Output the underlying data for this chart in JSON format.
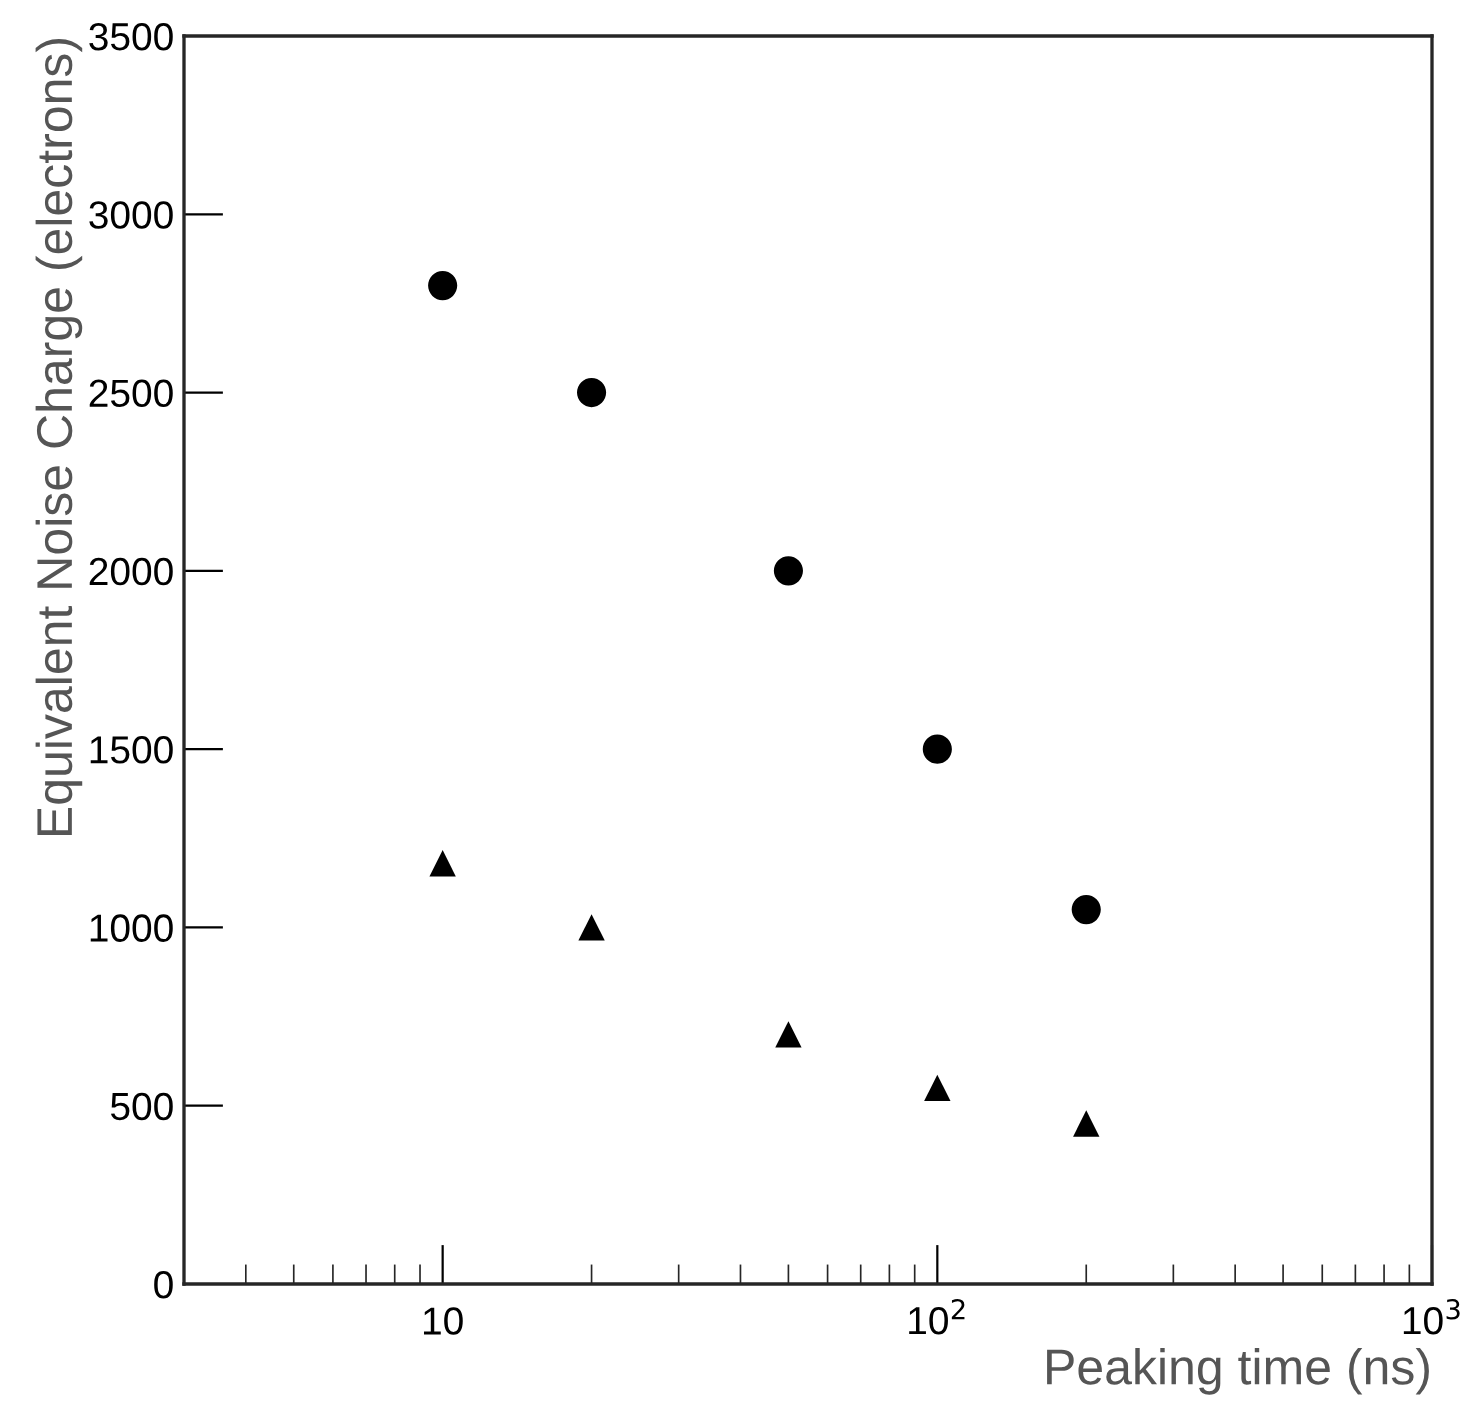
{
  "chart_data": {
    "type": "scatter",
    "xlabel": "Peaking time (ns)",
    "ylabel": "Equivalent Noise Charge (electrons)",
    "log": "x",
    "grid": false,
    "legend": false,
    "xlim": [
      3,
      1000
    ],
    "xticks": [
      {
        "value": 10,
        "label": "10"
      },
      {
        "value": 100,
        "label": "10$^{2}$"
      },
      {
        "value": 1000,
        "label": "10$^{3}$"
      }
    ],
    "ylim": [
      0,
      3500
    ],
    "yticks": [
      0,
      500,
      1000,
      1500,
      2000,
      2500,
      3000,
      3500
    ],
    "series": [
      {
        "color": "#000000",
        "marker": "circle",
        "x": [
          10,
          20,
          50,
          100,
          200
        ],
        "values": [
          2800,
          2500,
          2000,
          1500,
          1050
        ]
      },
      {
        "color": "#000000",
        "marker": "triangle",
        "x": [
          10,
          20,
          50,
          100,
          200
        ],
        "values": [
          1180,
          1000,
          700,
          550,
          450
        ]
      }
    ]
  }
}
